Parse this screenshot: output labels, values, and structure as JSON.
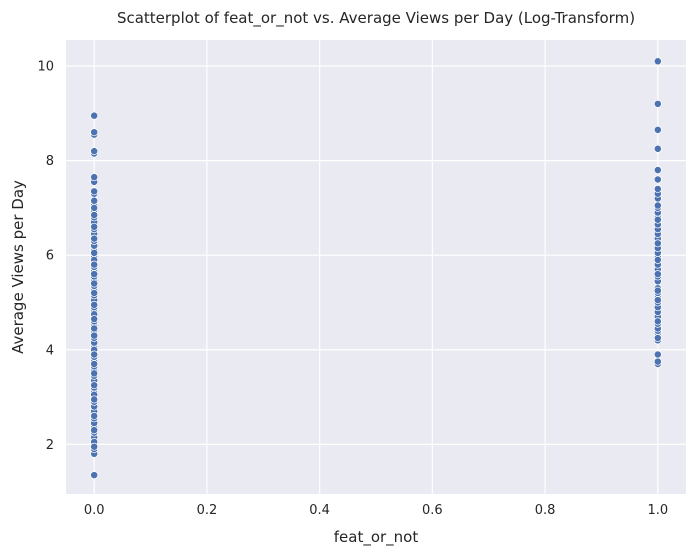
{
  "chart_data": {
    "type": "scatter",
    "title": "Scatterplot of feat_or_not vs. Average Views per Day (Log-Transform)",
    "xlabel": "feat_or_not",
    "ylabel": "Average Views per Day",
    "xlim": [
      -0.05,
      1.05
    ],
    "ylim": [
      0.95,
      10.55
    ],
    "xticks": [
      0.0,
      0.2,
      0.4,
      0.6,
      0.8,
      1.0
    ],
    "xtick_labels": [
      "0.0",
      "0.2",
      "0.4",
      "0.6",
      "0.8",
      "1.0"
    ],
    "yticks": [
      2,
      4,
      6,
      8,
      10
    ],
    "ytick_labels": [
      "2",
      "4",
      "6",
      "8",
      "10"
    ],
    "grid": true,
    "background": "#eaeaf2",
    "grid_color": "#ffffff",
    "marker_color": "#4c72b0",
    "marker_edge": "#ffffff",
    "series": [
      {
        "x": [
          0,
          0,
          0,
          0,
          0,
          0,
          0,
          0,
          0,
          0,
          0,
          0,
          0,
          0,
          0,
          0,
          0,
          0,
          0,
          0,
          0,
          0,
          0,
          0,
          0,
          0,
          0,
          0,
          0,
          0,
          0,
          0,
          0,
          0,
          0,
          0,
          0,
          0,
          0,
          0,
          0,
          0,
          0,
          0,
          0,
          0,
          0,
          0,
          0,
          0,
          0,
          0,
          0,
          0,
          0,
          0,
          0,
          0,
          0,
          0,
          0,
          0,
          0,
          0,
          0,
          0,
          0,
          0,
          0,
          0,
          0,
          0,
          0,
          0,
          0,
          0,
          0,
          0,
          0,
          0,
          0,
          0,
          0,
          0,
          0,
          0,
          0
        ],
        "y": [
          1.35,
          1.8,
          1.9,
          2.15,
          2.25,
          2.35,
          2.45,
          2.55,
          2.7,
          2.8,
          2.9,
          3.0,
          3.1,
          3.2,
          3.3,
          3.35,
          3.45,
          3.55,
          3.65,
          3.75,
          3.85,
          3.95,
          4.05,
          4.15,
          4.25,
          4.4,
          4.5,
          4.6,
          4.7,
          4.8,
          4.9,
          5.0,
          5.05,
          5.15,
          5.25,
          5.35,
          5.45,
          5.55,
          5.65,
          5.75,
          5.85,
          5.95,
          6.1,
          6.2,
          6.3,
          6.45,
          6.55,
          6.7,
          6.8,
          6.95,
          7.05,
          7.15,
          7.3,
          7.55,
          7.65,
          8.15,
          8.2,
          8.55,
          8.6,
          8.95,
          2.05,
          2.6,
          3.05,
          3.5,
          4.0,
          4.45,
          4.95,
          5.4,
          5.9,
          6.35,
          6.85,
          7.35,
          2.3,
          3.25,
          3.9,
          4.3,
          4.75,
          5.2,
          5.6,
          6.05,
          6.6,
          7.0,
          1.95,
          2.95,
          3.7,
          4.65,
          5.8
        ]
      },
      {
        "x": [
          1,
          1,
          1,
          1,
          1,
          1,
          1,
          1,
          1,
          1,
          1,
          1,
          1,
          1,
          1,
          1,
          1,
          1,
          1,
          1,
          1,
          1,
          1,
          1,
          1,
          1,
          1,
          1,
          1,
          1,
          1,
          1,
          1,
          1,
          1,
          1,
          1,
          1,
          1,
          1,
          1,
          1,
          1,
          1,
          1,
          1,
          1
        ],
        "y": [
          3.7,
          3.75,
          3.9,
          4.2,
          4.35,
          4.4,
          4.45,
          4.55,
          4.7,
          4.8,
          4.9,
          5.0,
          5.1,
          5.2,
          5.3,
          5.45,
          5.55,
          5.7,
          5.8,
          5.95,
          6.05,
          6.15,
          6.35,
          6.45,
          6.55,
          6.65,
          6.8,
          6.9,
          7.0,
          7.2,
          7.3,
          7.4,
          7.6,
          7.8,
          8.25,
          8.65,
          9.2,
          10.1,
          4.25,
          4.6,
          5.05,
          5.25,
          5.6,
          5.9,
          6.25,
          6.75,
          7.05
        ]
      }
    ]
  }
}
